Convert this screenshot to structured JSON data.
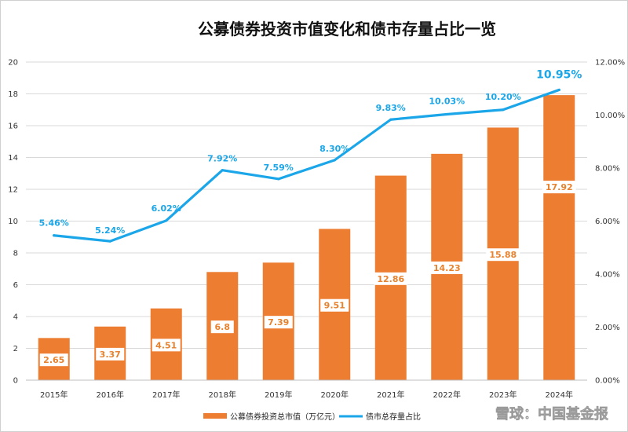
{
  "chart_data": {
    "type": "bar+line",
    "title": "公募债券投资市值变化和债市存量占比一览",
    "categories": [
      "2015年",
      "2016年",
      "2017年",
      "2018年",
      "2019年",
      "2020年",
      "2021年",
      "2022年",
      "2023年",
      "2024年"
    ],
    "series": [
      {
        "name": "公募债券投资总市值（万亿元）",
        "type": "bar",
        "axis": "left",
        "color": "#ed7d31",
        "values": [
          2.65,
          3.37,
          4.51,
          6.8,
          7.39,
          9.51,
          12.86,
          14.23,
          15.88,
          17.92
        ],
        "labels": [
          "2.65",
          "3.37",
          "4.51",
          "6.8",
          "7.39",
          "9.51",
          "12.86",
          "14.23",
          "15.88",
          "17.92"
        ]
      },
      {
        "name": "债市总存量占比",
        "type": "line",
        "axis": "right",
        "color": "#1aa6e8",
        "values": [
          5.46,
          5.24,
          6.02,
          7.92,
          7.59,
          8.3,
          9.83,
          10.03,
          10.2,
          10.95
        ],
        "labels": [
          "5.46%",
          "5.24%",
          "6.02%",
          "7.92%",
          "7.59%",
          "8.30%",
          "9.83%",
          "10.03%",
          "10.20%",
          "10.95%"
        ]
      }
    ],
    "y_left": {
      "min": 0,
      "max": 20,
      "ticks": [
        "0",
        "2",
        "4",
        "6",
        "8",
        "10",
        "12",
        "14",
        "16",
        "18",
        "20"
      ]
    },
    "y_right": {
      "min": 0,
      "max": 12,
      "ticks": [
        "0.00%",
        "2.00%",
        "4.00%",
        "6.00%",
        "8.00%",
        "10.00%",
        "12.00%"
      ]
    },
    "legend_position": "bottom"
  },
  "watermark": "雪球：中国基金报"
}
